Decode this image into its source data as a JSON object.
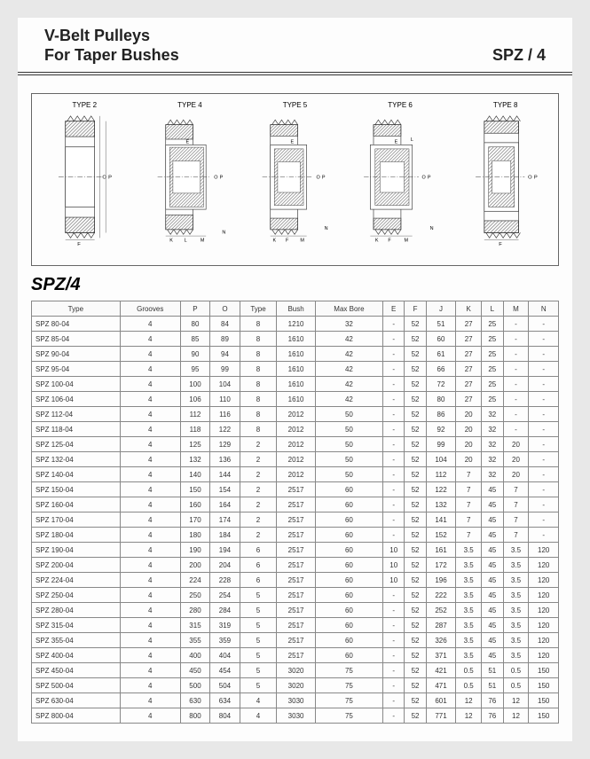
{
  "header": {
    "title_line1": "V-Belt  Pulleys",
    "title_line2": "For Taper Bushes",
    "code": "SPZ / 4"
  },
  "diagram": {
    "types": [
      "TYPE 2",
      "TYPE 4",
      "TYPE 5",
      "TYPE 6",
      "TYPE 8"
    ]
  },
  "section_label": "SPZ/4",
  "table": {
    "columns": [
      "Type",
      "Grooves",
      "P",
      "O",
      "Type",
      "Bush",
      "Max Bore",
      "E",
      "F",
      "J",
      "K",
      "L",
      "M",
      "N"
    ],
    "rows": [
      [
        "SPZ  80-04",
        "4",
        "80",
        "84",
        "8",
        "1210",
        "32",
        "-",
        "52",
        "51",
        "27",
        "25",
        "-",
        "-"
      ],
      [
        "SPZ  85-04",
        "4",
        "85",
        "89",
        "8",
        "1610",
        "42",
        "-",
        "52",
        "60",
        "27",
        "25",
        "-",
        "-"
      ],
      [
        "SPZ  90-04",
        "4",
        "90",
        "94",
        "8",
        "1610",
        "42",
        "-",
        "52",
        "61",
        "27",
        "25",
        "-",
        "-"
      ],
      [
        "SPZ  95-04",
        "4",
        "95",
        "99",
        "8",
        "1610",
        "42",
        "-",
        "52",
        "66",
        "27",
        "25",
        "-",
        "-"
      ],
      [
        "SPZ 100-04",
        "4",
        "100",
        "104",
        "8",
        "1610",
        "42",
        "-",
        "52",
        "72",
        "27",
        "25",
        "-",
        "-"
      ],
      [
        "SPZ 106-04",
        "4",
        "106",
        "110",
        "8",
        "1610",
        "42",
        "-",
        "52",
        "80",
        "27",
        "25",
        "-",
        "-"
      ],
      [
        "SPZ 112-04",
        "4",
        "112",
        "116",
        "8",
        "2012",
        "50",
        "-",
        "52",
        "86",
        "20",
        "32",
        "-",
        "-"
      ],
      [
        "SPZ 118-04",
        "4",
        "118",
        "122",
        "8",
        "2012",
        "50",
        "-",
        "52",
        "92",
        "20",
        "32",
        "-",
        "-"
      ],
      [
        "SPZ 125-04",
        "4",
        "125",
        "129",
        "2",
        "2012",
        "50",
        "-",
        "52",
        "99",
        "20",
        "32",
        "20",
        "-"
      ],
      [
        "SPZ 132-04",
        "4",
        "132",
        "136",
        "2",
        "2012",
        "50",
        "-",
        "52",
        "104",
        "20",
        "32",
        "20",
        "-"
      ],
      [
        "SPZ 140-04",
        "4",
        "140",
        "144",
        "2",
        "2012",
        "50",
        "-",
        "52",
        "112",
        "7",
        "32",
        "20",
        "-"
      ],
      [
        "SPZ 150-04",
        "4",
        "150",
        "154",
        "2",
        "2517",
        "60",
        "-",
        "52",
        "122",
        "7",
        "45",
        "7",
        "-"
      ],
      [
        "SPZ 160-04",
        "4",
        "160",
        "164",
        "2",
        "2517",
        "60",
        "-",
        "52",
        "132",
        "7",
        "45",
        "7",
        "-"
      ],
      [
        "SPZ 170-04",
        "4",
        "170",
        "174",
        "2",
        "2517",
        "60",
        "-",
        "52",
        "141",
        "7",
        "45",
        "7",
        "-"
      ],
      [
        "SPZ 180-04",
        "4",
        "180",
        "184",
        "2",
        "2517",
        "60",
        "-",
        "52",
        "152",
        "7",
        "45",
        "7",
        "-"
      ],
      [
        "SPZ 190-04",
        "4",
        "190",
        "194",
        "6",
        "2517",
        "60",
        "10",
        "52",
        "161",
        "3.5",
        "45",
        "3.5",
        "120"
      ],
      [
        "SPZ 200-04",
        "4",
        "200",
        "204",
        "6",
        "2517",
        "60",
        "10",
        "52",
        "172",
        "3.5",
        "45",
        "3.5",
        "120"
      ],
      [
        "SPZ 224-04",
        "4",
        "224",
        "228",
        "6",
        "2517",
        "60",
        "10",
        "52",
        "196",
        "3.5",
        "45",
        "3.5",
        "120"
      ],
      [
        "SPZ 250-04",
        "4",
        "250",
        "254",
        "5",
        "2517",
        "60",
        "-",
        "52",
        "222",
        "3.5",
        "45",
        "3.5",
        "120"
      ],
      [
        "SPZ 280-04",
        "4",
        "280",
        "284",
        "5",
        "2517",
        "60",
        "-",
        "52",
        "252",
        "3.5",
        "45",
        "3.5",
        "120"
      ],
      [
        "SPZ 315-04",
        "4",
        "315",
        "319",
        "5",
        "2517",
        "60",
        "-",
        "52",
        "287",
        "3.5",
        "45",
        "3.5",
        "120"
      ],
      [
        "SPZ 355-04",
        "4",
        "355",
        "359",
        "5",
        "2517",
        "60",
        "-",
        "52",
        "326",
        "3.5",
        "45",
        "3.5",
        "120"
      ],
      [
        "SPZ 400-04",
        "4",
        "400",
        "404",
        "5",
        "2517",
        "60",
        "-",
        "52",
        "371",
        "3.5",
        "45",
        "3.5",
        "120"
      ],
      [
        "SPZ 450-04",
        "4",
        "450",
        "454",
        "5",
        "3020",
        "75",
        "-",
        "52",
        "421",
        "0.5",
        "51",
        "0.5",
        "150"
      ],
      [
        "SPZ 500-04",
        "4",
        "500",
        "504",
        "5",
        "3020",
        "75",
        "-",
        "52",
        "471",
        "0.5",
        "51",
        "0.5",
        "150"
      ],
      [
        "SPZ 630-04",
        "4",
        "630",
        "634",
        "4",
        "3030",
        "75",
        "-",
        "52",
        "601",
        "12",
        "76",
        "12",
        "150"
      ],
      [
        "SPZ 800-04",
        "4",
        "800",
        "804",
        "4",
        "3030",
        "75",
        "-",
        "52",
        "771",
        "12",
        "76",
        "12",
        "150"
      ]
    ]
  },
  "style": {
    "border_color": "#888",
    "font_size_table": 8,
    "font_size_header": 18,
    "hatch_color": "#555",
    "line_color": "#333"
  }
}
